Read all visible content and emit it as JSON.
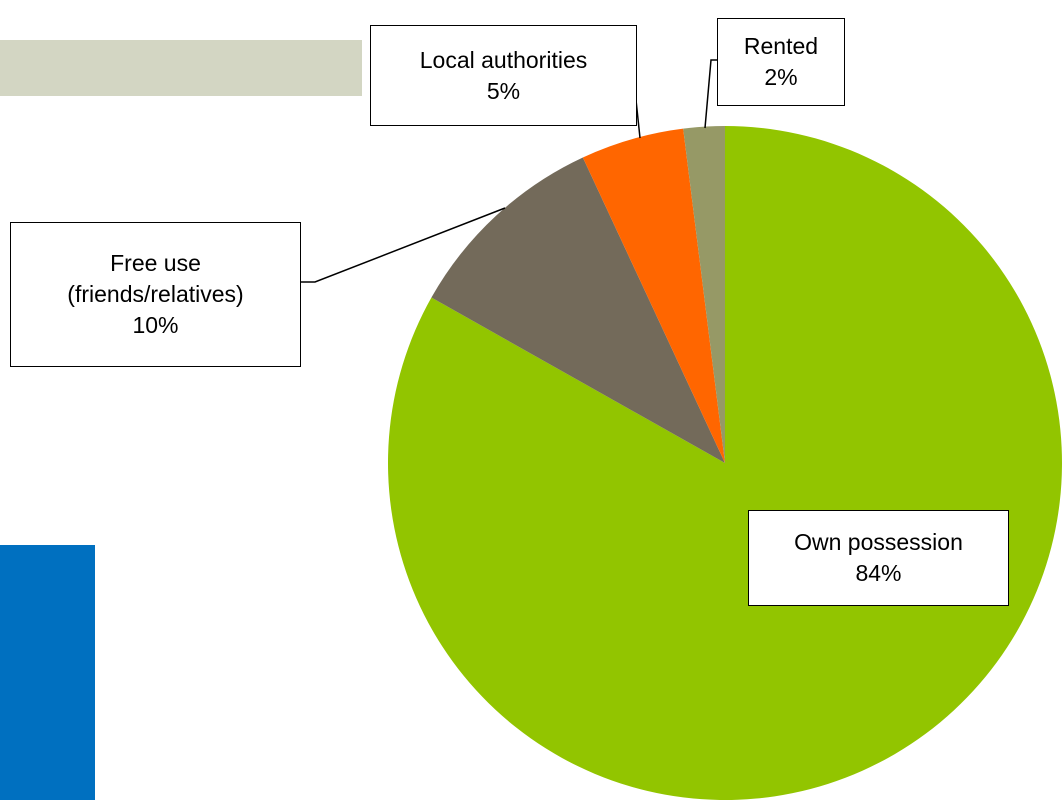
{
  "chart_data": {
    "type": "pie",
    "categories": [
      "Own possession",
      "Free use\n(friends/relatives)",
      "Local authorities",
      "Rented"
    ],
    "values": [
      84,
      10,
      5,
      2
    ],
    "value_labels": [
      "84%",
      "10%",
      "5%",
      "2%"
    ],
    "colors": [
      "#92c500",
      "#736a5a",
      "#ff6600",
      "#969966"
    ]
  }
}
